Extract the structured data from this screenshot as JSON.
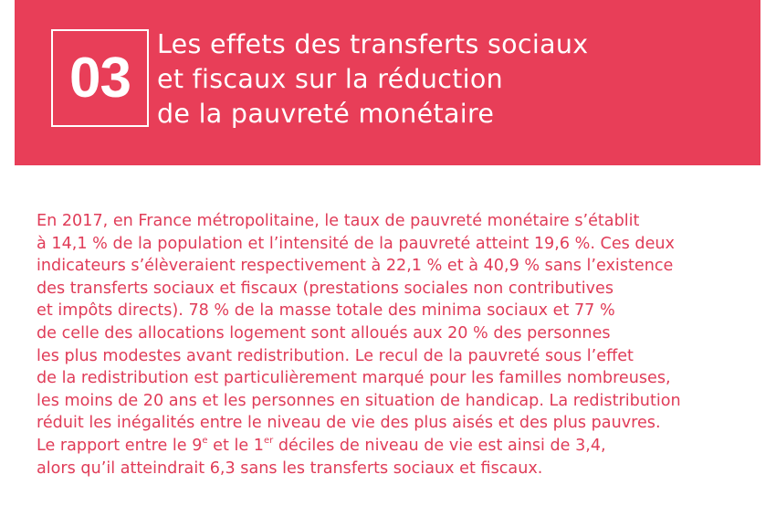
{
  "header": {
    "number": "03",
    "title_lines": [
      "Les effets des transferts sociaux",
      "et fiscaux sur la réduction",
      "de la pauvreté monétaire"
    ],
    "background_color": "#e83e58"
  },
  "body": {
    "lines": [
      "En 2017, en France métropolitaine, le taux de pauvreté monétaire s’établit",
      "à 14,1 % de la population et l’intensité de la pauvreté atteint 19,6 %. Ces deux",
      "indicateurs s’élèveraient respectivement à 22,1 % et à 40,9 % sans l’existence",
      "des transferts sociaux et fiscaux (prestations sociales non contributives",
      "et impôts directs). 78 % de la masse totale des minima sociaux et 77 %",
      "de celle des allocations logement sont alloués aux 20 % des personnes",
      "les plus modestes avant redistribution. Le recul de la pauvreté sous l’effet",
      "de la redistribution est particulièrement marqué pour les familles nombreuses,",
      "les moins de 20 ans et les personnes en situation de handicap. La redistribution",
      "réduit les inégalités entre le niveau de vie des plus aisés et des plus pauvres."
    ],
    "line11": {
      "a": "Le rapport entre le 9",
      "sup1": "e",
      "b": " et le 1",
      "sup2": "er",
      "c": " déciles de niveau de vie est ainsi de 3,4,"
    },
    "line12": "alors qu’il atteindrait 6,3 sans les transferts sociaux et fiscaux.",
    "text_color": "#e03c58"
  }
}
